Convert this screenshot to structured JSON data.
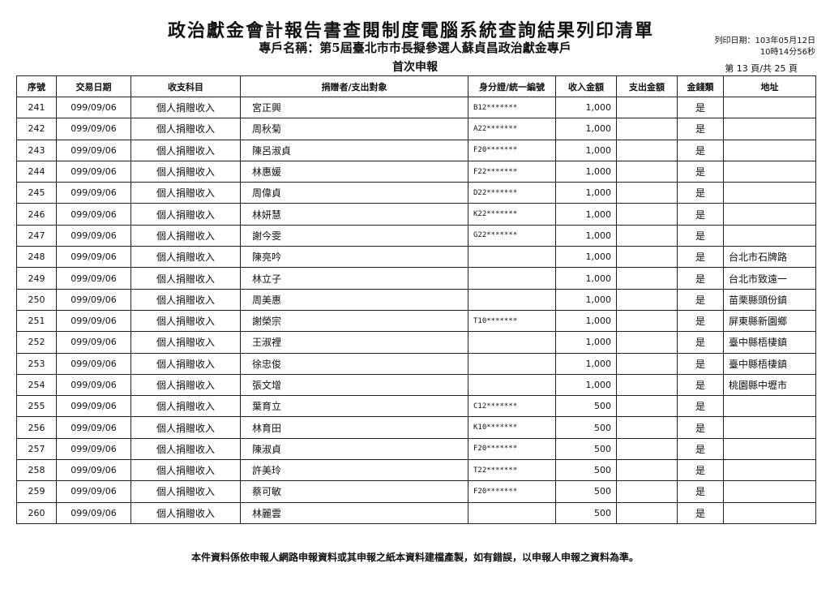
{
  "header": {
    "title": "政治獻金會計報告書查閱制度電腦系統查詢結果列印清單",
    "account": "專戶名稱：第5屆臺北市市長擬參選人蘇貞昌政治獻金專戶",
    "report_type": "首次申報",
    "print_date": "列印日期：103年05月12日",
    "print_time": "10時14分56秒",
    "page": "第 13 頁/共 25 頁"
  },
  "columns": [
    "序號",
    "交易日期",
    "收支科目",
    "捐贈者/支出對象",
    "身分證/統一編號",
    "收入金額",
    "支出金額",
    "金錢類",
    "地址"
  ],
  "rows": [
    [
      "241",
      "099/09/06",
      "個人捐贈收入",
      "宮正興",
      "B12*******",
      "1,000",
      "",
      "是",
      ""
    ],
    [
      "242",
      "099/09/06",
      "個人捐贈收入",
      "周秋菊",
      "A22*******",
      "1,000",
      "",
      "是",
      ""
    ],
    [
      "243",
      "099/09/06",
      "個人捐贈收入",
      "陳呂淑貞",
      "F20*******",
      "1,000",
      "",
      "是",
      ""
    ],
    [
      "244",
      "099/09/06",
      "個人捐贈收入",
      "林惠媛",
      "F22*******",
      "1,000",
      "",
      "是",
      ""
    ],
    [
      "245",
      "099/09/06",
      "個人捐贈收入",
      "周偉貞",
      "D22*******",
      "1,000",
      "",
      "是",
      ""
    ],
    [
      "246",
      "099/09/06",
      "個人捐贈收入",
      "林妍慧",
      "K22*******",
      "1,000",
      "",
      "是",
      ""
    ],
    [
      "247",
      "099/09/06",
      "個人捐贈收入",
      "謝今雯",
      "G22*******",
      "1,000",
      "",
      "是",
      ""
    ],
    [
      "248",
      "099/09/06",
      "個人捐贈收入",
      "陳亮吟",
      "",
      "1,000",
      "",
      "是",
      "台北市石牌路"
    ],
    [
      "249",
      "099/09/06",
      "個人捐贈收入",
      "林立子",
      "",
      "1,000",
      "",
      "是",
      "台北市致遠一"
    ],
    [
      "250",
      "099/09/06",
      "個人捐贈收入",
      "周美惠",
      "",
      "1,000",
      "",
      "是",
      "苗栗縣頭份鎮"
    ],
    [
      "251",
      "099/09/06",
      "個人捐贈收入",
      "謝榮宗",
      "T10*******",
      "1,000",
      "",
      "是",
      "屏東縣新園鄉"
    ],
    [
      "252",
      "099/09/06",
      "個人捐贈收入",
      "王淑裡",
      "",
      "1,000",
      "",
      "是",
      "臺中縣梧棲鎮"
    ],
    [
      "253",
      "099/09/06",
      "個人捐贈收入",
      "徐忠俊",
      "",
      "1,000",
      "",
      "是",
      "臺中縣梧棲鎮"
    ],
    [
      "254",
      "099/09/06",
      "個人捐贈收入",
      "張文增",
      "",
      "1,000",
      "",
      "是",
      "桃園縣中壢市"
    ],
    [
      "255",
      "099/09/06",
      "個人捐贈收入",
      "葉育立",
      "C12*******",
      "500",
      "",
      "是",
      ""
    ],
    [
      "256",
      "099/09/06",
      "個人捐贈收入",
      "林育田",
      "K10*******",
      "500",
      "",
      "是",
      ""
    ],
    [
      "257",
      "099/09/06",
      "個人捐贈收入",
      "陳淑貞",
      "F20*******",
      "500",
      "",
      "是",
      ""
    ],
    [
      "258",
      "099/09/06",
      "個人捐贈收入",
      "許美玲",
      "T22*******",
      "500",
      "",
      "是",
      ""
    ],
    [
      "259",
      "099/09/06",
      "個人捐贈收入",
      "蔡可敏",
      "F20*******",
      "500",
      "",
      "是",
      ""
    ],
    [
      "260",
      "099/09/06",
      "個人捐贈收入",
      "林麗雲",
      "",
      "500",
      "",
      "是",
      ""
    ]
  ],
  "footer": "本件資料係依申報人網路申報資料或其申報之紙本資料建檔產製，如有錯誤，以申報人申報之資料為準。"
}
